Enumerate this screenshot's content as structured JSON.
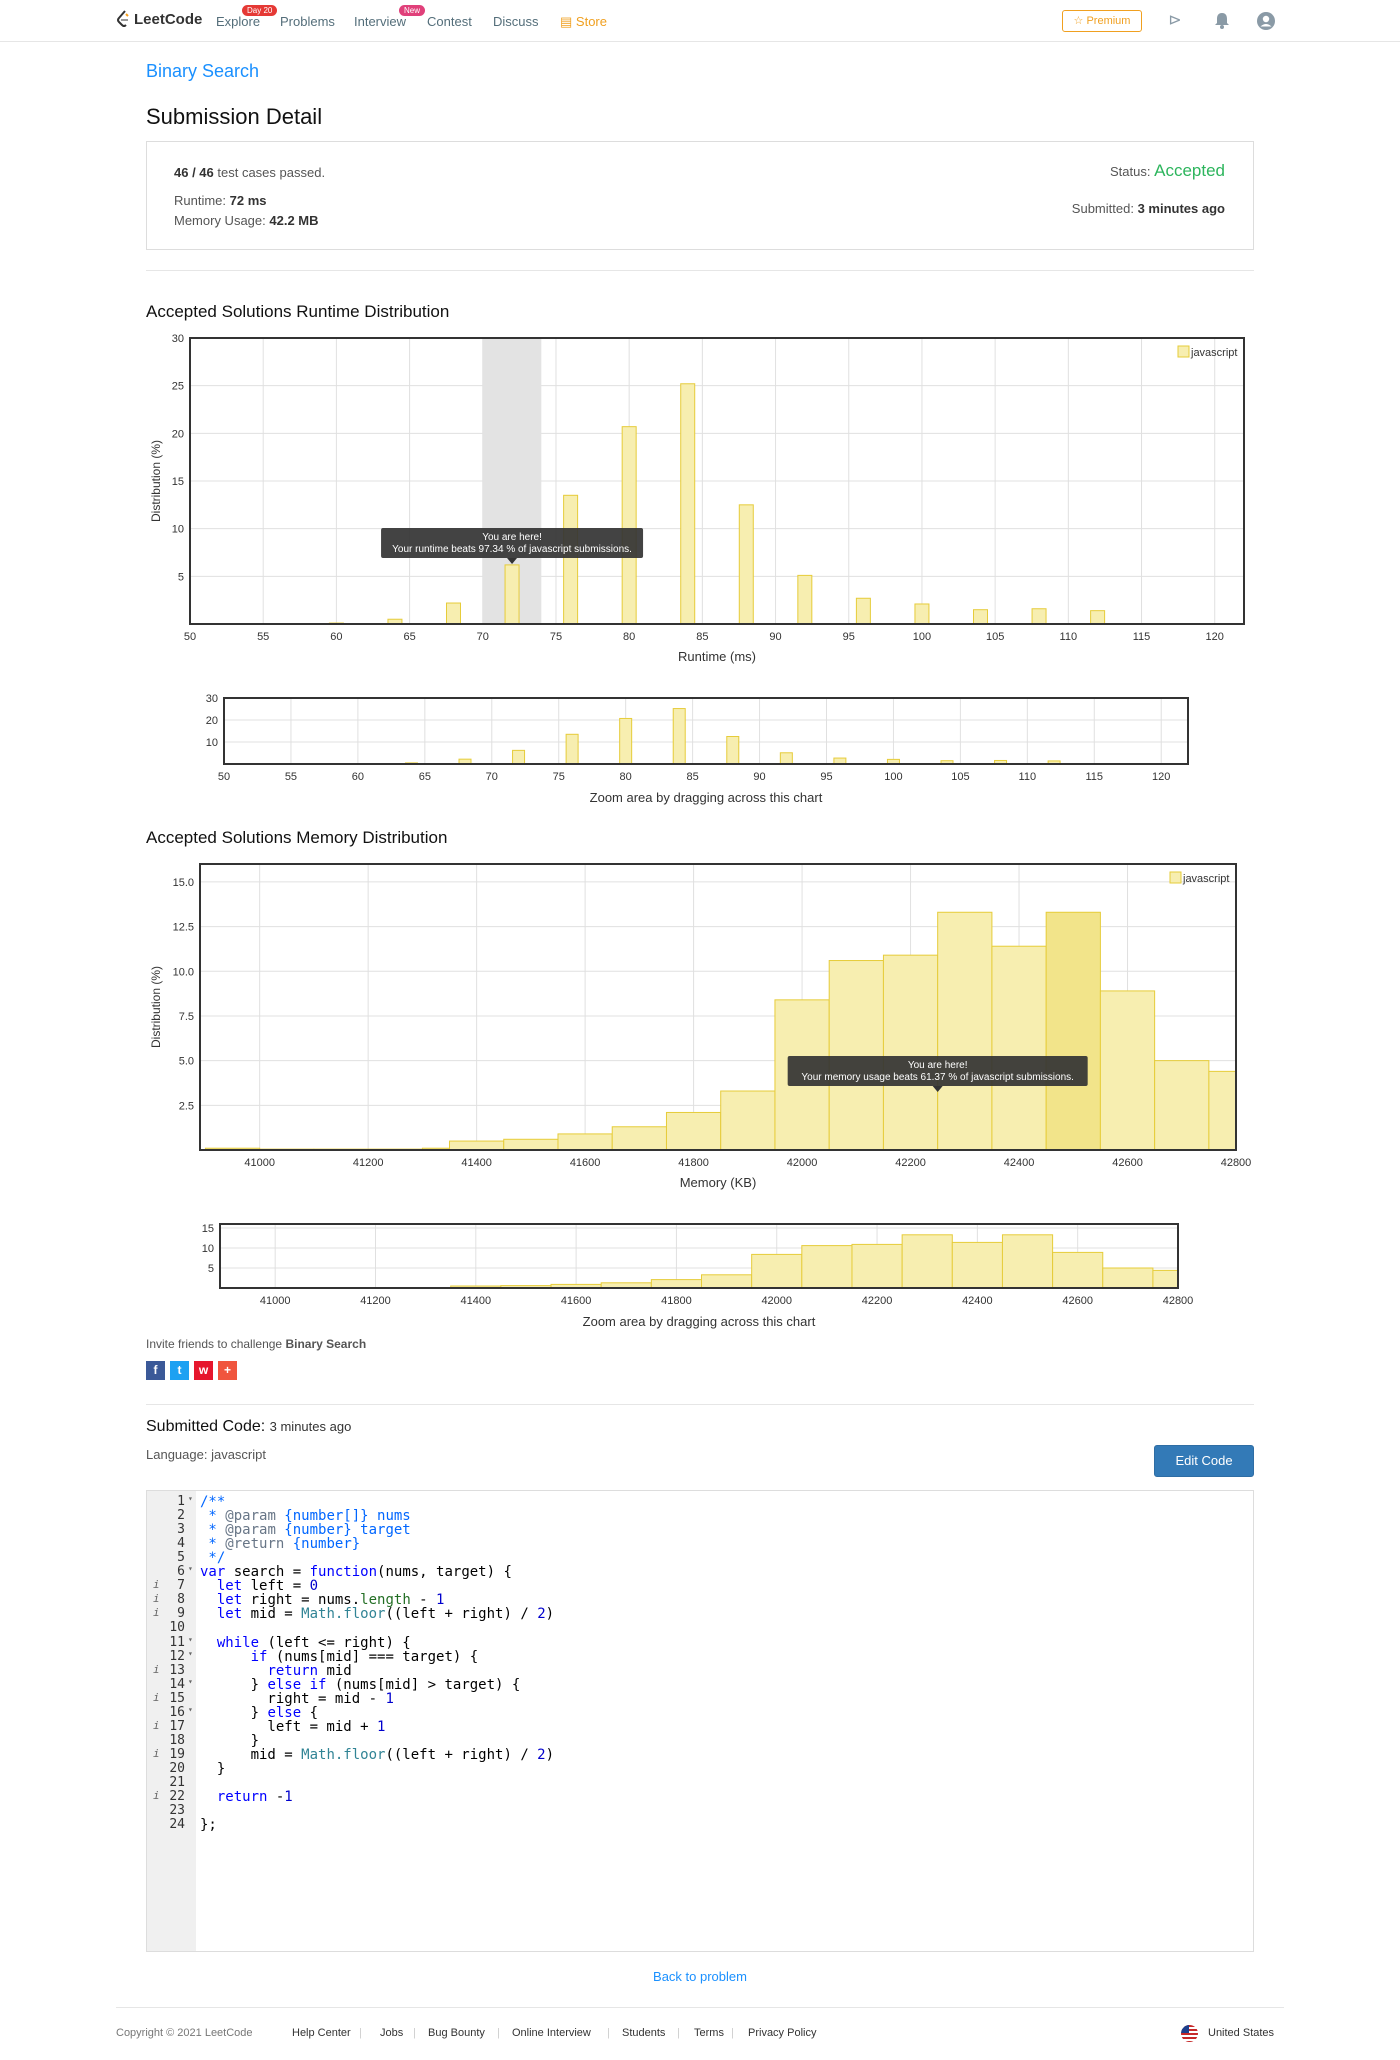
{
  "nav": {
    "logo": "LeetCode",
    "links": [
      "Explore",
      "Problems",
      "Interview",
      "Contest",
      "Discuss",
      "Store"
    ],
    "explore_badge": "Day 20",
    "interview_badge": "New",
    "premium": "Premium",
    "icons": [
      "playground-icon",
      "bell-icon",
      "user-avatar-icon"
    ]
  },
  "breadcrumb": "Binary Search",
  "page_title": "Submission Detail",
  "summary": {
    "passed_count": "46 / 46",
    "passed_suffix": "test cases passed.",
    "runtime_label": "Runtime:",
    "runtime": "72 ms",
    "memory_label": "Memory Usage:",
    "memory": "42.2 MB",
    "status_label": "Status:",
    "status": "Accepted",
    "submitted_label": "Submitted:",
    "submitted": "3 minutes ago"
  },
  "runtime_title": "Accepted Solutions Runtime Distribution",
  "memory_title": "Accepted Solutions Memory Distribution",
  "zoom_hint": "Zoom area by dragging across this chart",
  "chart_data": [
    {
      "type": "bar",
      "title": "Accepted Solutions Runtime Distribution",
      "xlabel": "Runtime (ms)",
      "ylabel": "Distribution (%)",
      "xlim": [
        50,
        122
      ],
      "ylim": [
        0,
        30
      ],
      "x_ticks": [
        50,
        55,
        60,
        65,
        70,
        75,
        80,
        85,
        90,
        95,
        100,
        105,
        110,
        115,
        120
      ],
      "y_ticks": [
        5,
        10,
        15,
        20,
        25,
        30
      ],
      "legend": "top-right",
      "series": [
        {
          "name": "javascript",
          "color": "#f7e99c",
          "x": [
            60,
            64,
            68,
            72,
            76,
            80,
            84,
            88,
            92,
            96,
            100,
            104,
            108,
            112
          ],
          "values": [
            0.1,
            0.5,
            2.2,
            6.2,
            13.5,
            20.7,
            25.2,
            12.5,
            5.1,
            2.7,
            2.1,
            1.5,
            1.6,
            1.4
          ]
        }
      ],
      "highlight_x": 72,
      "tooltip": [
        "You are here!",
        "Your runtime beats 97.34 % of javascript submissions."
      ]
    },
    {
      "type": "bar",
      "title": "Runtime Zoom Navigator",
      "xlim": [
        50,
        122
      ],
      "ylim": [
        0,
        30
      ],
      "x_ticks": [
        50,
        55,
        60,
        65,
        70,
        75,
        80,
        85,
        90,
        95,
        100,
        105,
        110,
        115,
        120
      ],
      "y_ticks": [
        10,
        20,
        30
      ],
      "series": [
        {
          "name": "javascript",
          "x": [
            60,
            64,
            68,
            72,
            76,
            80,
            84,
            88,
            92,
            96,
            100,
            104,
            108,
            112
          ],
          "values": [
            0.1,
            0.5,
            2.2,
            6.2,
            13.5,
            20.7,
            25.2,
            12.5,
            5.1,
            2.7,
            2.1,
            1.5,
            1.6,
            1.4
          ]
        }
      ]
    },
    {
      "type": "bar",
      "title": "Accepted Solutions Memory Distribution",
      "xlabel": "Memory (KB)",
      "ylabel": "Distribution (%)",
      "xlim": [
        40890,
        42800
      ],
      "ylim": [
        0,
        16
      ],
      "x_ticks": [
        41000,
        41200,
        41400,
        41600,
        41800,
        42000,
        42200,
        42400,
        42600,
        42800
      ],
      "y_ticks": [
        2.5,
        5.0,
        7.5,
        10.0,
        12.5,
        15.0
      ],
      "legend": "top-right",
      "series": [
        {
          "name": "javascript",
          "color": "#f7e99c",
          "bin_start": [
            40900,
            41000,
            41100,
            41200,
            41300,
            41350,
            41450,
            41550,
            41650,
            41750,
            41850,
            41950,
            42050,
            42150,
            42250,
            42350,
            42450,
            42550,
            42650,
            42750
          ],
          "bin_end": [
            41000,
            41100,
            41200,
            41300,
            41350,
            41450,
            41550,
            41650,
            41750,
            41850,
            41950,
            42050,
            42150,
            42250,
            42350,
            42450,
            42550,
            42650,
            42750,
            42850
          ],
          "values": [
            0.1,
            0.05,
            0.05,
            0.05,
            0.1,
            0.5,
            0.6,
            0.9,
            1.3,
            2.1,
            3.3,
            8.4,
            10.6,
            10.9,
            13.3,
            11.4,
            13.3,
            8.9,
            5.0,
            4.4
          ]
        }
      ],
      "highlight_bin": [
        42450,
        42550
      ],
      "tooltip": [
        "You are here!",
        "Your memory usage beats 61.37 % of javascript submissions."
      ]
    },
    {
      "type": "bar",
      "title": "Memory Zoom Navigator",
      "xlim": [
        40890,
        42800
      ],
      "ylim": [
        0,
        16
      ],
      "x_ticks": [
        41000,
        41200,
        41400,
        41600,
        41800,
        42000,
        42200,
        42400,
        42600,
        42800
      ],
      "y_ticks": [
        5,
        10,
        15
      ],
      "series": [
        {
          "name": "javascript",
          "bin_start": [
            40900,
            41000,
            41100,
            41200,
            41300,
            41350,
            41450,
            41550,
            41650,
            41750,
            41850,
            41950,
            42050,
            42150,
            42250,
            42350,
            42450,
            42550,
            42650,
            42750
          ],
          "bin_end": [
            41000,
            41100,
            41200,
            41300,
            41350,
            41450,
            41550,
            41650,
            41750,
            41850,
            41950,
            42050,
            42150,
            42250,
            42350,
            42450,
            42550,
            42650,
            42750,
            42850
          ],
          "values": [
            0.1,
            0.05,
            0.05,
            0.05,
            0.1,
            0.5,
            0.6,
            0.9,
            1.3,
            2.1,
            3.3,
            8.4,
            10.6,
            10.9,
            13.3,
            11.4,
            13.3,
            8.9,
            5.0,
            4.4
          ]
        }
      ]
    }
  ],
  "invite": {
    "prefix": "Invite friends to challenge",
    "problem": "Binary Search"
  },
  "share_icons": [
    "facebook-icon",
    "twitter-icon",
    "weibo-icon",
    "more-share-icon"
  ],
  "submitted_code": {
    "label": "Submitted Code:",
    "time": "3 minutes ago",
    "language_label": "Language:",
    "language": "javascript",
    "edit_button": "Edit Code"
  },
  "code_lines": [
    "/**",
    " * @param {number[]} nums",
    " * @param {number} target",
    " * @return {number}",
    " */",
    "var search = function(nums, target) {",
    "  let left = 0",
    "  let right = nums.length - 1",
    "  let mid = Math.floor((left + right) / 2)",
    "",
    "  while (left <= right) {",
    "      if (nums[mid] === target) {",
    "        return mid",
    "      } else if (nums[mid] > target) {",
    "        right = mid - 1",
    "      } else {",
    "        left = mid + 1",
    "      }",
    "      mid = Math.floor((left + right) / 2)",
    "  }",
    "",
    "  return -1",
    "",
    "};"
  ],
  "back_link": "Back to problem",
  "footer": {
    "copyright": "Copyright © 2021 LeetCode",
    "links": [
      "Help Center",
      "Jobs",
      "Bug Bounty",
      "Online Interview",
      "Students",
      "Terms",
      "Privacy Policy"
    ],
    "region": "United States"
  },
  "colors": {
    "accent": "#1a90ff",
    "accepted": "#2db55d",
    "bar_fill": "#f7eeb0",
    "bar_stroke": "#e6cc3a",
    "premium": "#f0a020",
    "edit_button": "#337ab7"
  }
}
